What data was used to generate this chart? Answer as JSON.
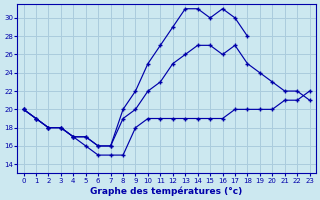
{
  "bg_color": "#cce8f0",
  "grid_color": "#aaccdd",
  "line_color": "#0000aa",
  "xlabel": "Graphe des températures (°c)",
  "xlim": [
    -0.5,
    23.5
  ],
  "ylim": [
    13,
    31.5
  ],
  "yticks": [
    14,
    16,
    18,
    20,
    22,
    24,
    26,
    28,
    30
  ],
  "xticks": [
    0,
    1,
    2,
    3,
    4,
    5,
    6,
    7,
    8,
    9,
    10,
    11,
    12,
    13,
    14,
    15,
    16,
    17,
    18,
    19,
    20,
    21,
    22,
    23
  ],
  "curve_top_x": [
    0,
    1,
    2,
    3,
    4,
    5,
    6,
    7,
    8,
    9,
    10,
    11,
    12,
    13,
    14,
    15,
    16,
    17,
    18
  ],
  "curve_top_y": [
    20,
    19,
    18,
    18,
    17,
    17,
    16,
    16,
    20,
    22,
    25,
    27,
    29,
    31,
    31,
    30,
    31,
    30,
    28
  ],
  "curve_mid_x": [
    0,
    1,
    2,
    3,
    4,
    5,
    6,
    7,
    8,
    9,
    10,
    11,
    12,
    13,
    14,
    15,
    16,
    17,
    18,
    19,
    20,
    21,
    22,
    23
  ],
  "curve_mid_y": [
    20,
    19,
    18,
    18,
    17,
    17,
    16,
    16,
    19,
    20,
    22,
    23,
    25,
    26,
    27,
    27,
    26,
    27,
    25,
    24,
    23,
    22,
    22,
    21
  ],
  "curve_bot_x": [
    0,
    1,
    2,
    3,
    4,
    5,
    6,
    7,
    8,
    9,
    10,
    11,
    12,
    13,
    14,
    15,
    16,
    17,
    18,
    19,
    20,
    21,
    22,
    23
  ],
  "curve_bot_y": [
    20,
    19,
    18,
    18,
    17,
    16,
    15,
    15,
    15,
    18,
    19,
    19,
    19,
    19,
    19,
    19,
    19,
    20,
    20,
    20,
    20,
    21,
    21,
    22
  ]
}
